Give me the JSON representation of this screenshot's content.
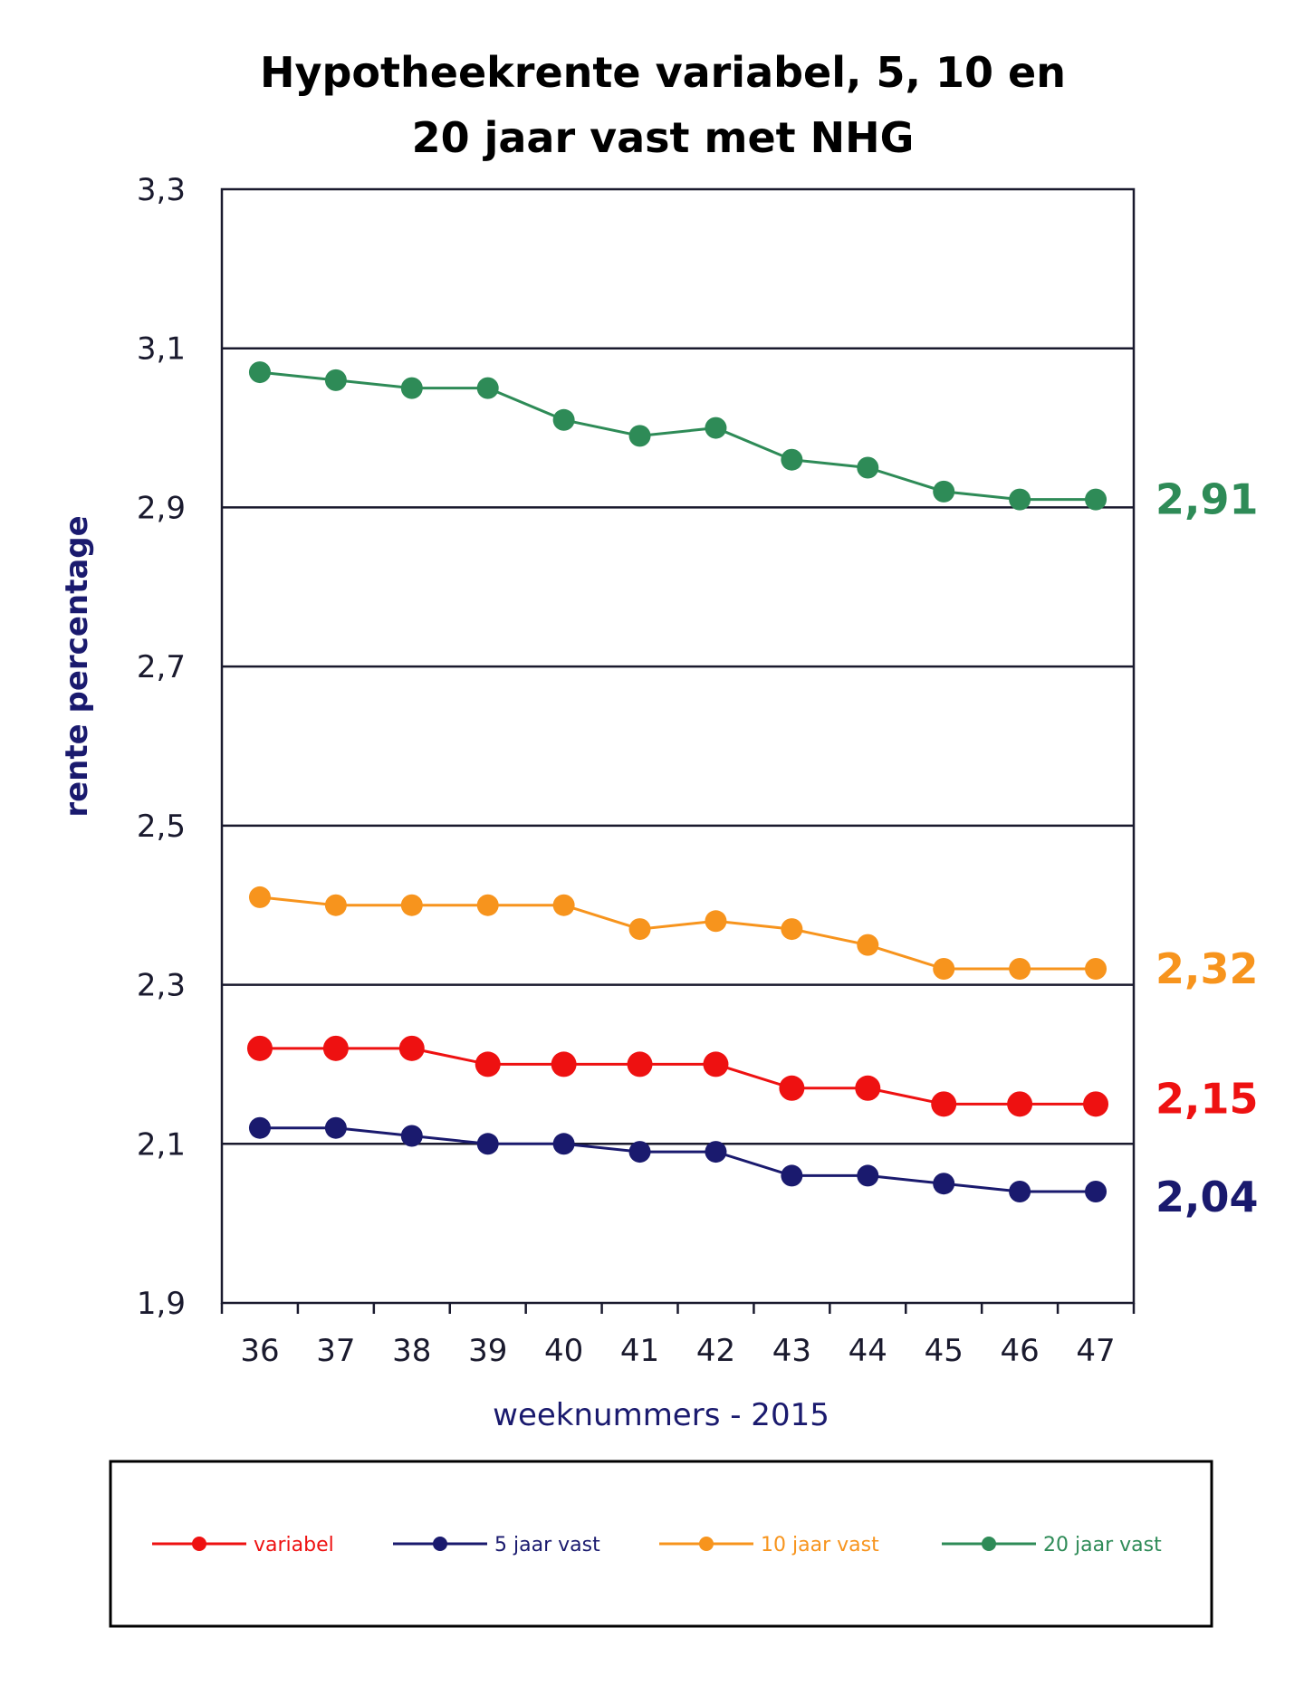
{
  "chart_data": {
    "type": "line",
    "title": [
      "Hypotheekrente variabel, 5, 10 en",
      "20 jaar vast met NHG"
    ],
    "xlabel": "weeknummers - 2015",
    "ylabel": "rente percentage",
    "ylim": [
      1.9,
      3.3
    ],
    "y_ticks": [
      "1,9",
      "2,1",
      "2,3",
      "2,5",
      "2,7",
      "2,9",
      "3,1",
      "3,3"
    ],
    "y_tick_values": [
      1.9,
      2.1,
      2.3,
      2.5,
      2.7,
      2.9,
      3.1,
      3.3
    ],
    "categories": [
      "36",
      "37",
      "38",
      "39",
      "40",
      "41",
      "42",
      "43",
      "44",
      "45",
      "46",
      "47"
    ],
    "grid": true,
    "legend_placement": "bottom",
    "title_color": "#1a1a6e",
    "series": [
      {
        "name": "variabel",
        "color": "#ee1111",
        "values": [
          2.22,
          2.22,
          2.22,
          2.2,
          2.2,
          2.2,
          2.2,
          2.17,
          2.17,
          2.15,
          2.15,
          2.15
        ],
        "end_label": "2,15"
      },
      {
        "name": "5 jaar vast",
        "color": "#1a1a6e",
        "values": [
          2.12,
          2.12,
          2.11,
          2.1,
          2.1,
          2.09,
          2.09,
          2.06,
          2.06,
          2.05,
          2.04,
          2.04
        ],
        "end_label": "2,04"
      },
      {
        "name": "10 jaar vast",
        "color": "#f7941d",
        "values": [
          2.41,
          2.4,
          2.4,
          2.4,
          2.4,
          2.37,
          2.38,
          2.37,
          2.35,
          2.32,
          2.32,
          2.32
        ],
        "end_label": "2,32"
      },
      {
        "name": "20 jaar vast",
        "color": "#2e8b57",
        "values": [
          3.07,
          3.06,
          3.05,
          3.05,
          3.01,
          2.99,
          3.0,
          2.96,
          2.95,
          2.92,
          2.91,
          2.91
        ],
        "end_label": "2,91"
      }
    ]
  }
}
